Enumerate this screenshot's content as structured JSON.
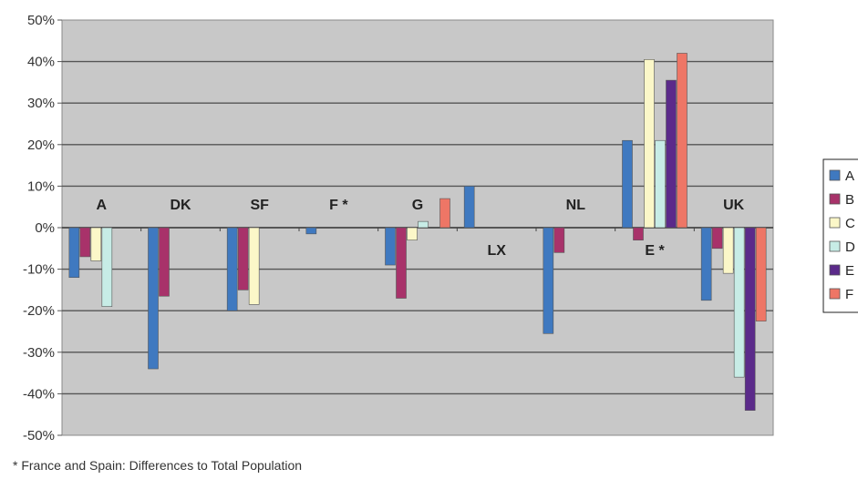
{
  "chart_data": {
    "type": "bar",
    "title": "",
    "xlabel": "",
    "ylabel": "",
    "ylim": [
      -50,
      50
    ],
    "y_ticks": [
      "-50%",
      "-40%",
      "-30%",
      "-20%",
      "-10%",
      "0%",
      "10%",
      "20%",
      "30%",
      "40%",
      "50%"
    ],
    "grid": true,
    "legend_position": "right",
    "background": "#c8c8c8",
    "categories": [
      "A",
      "DK",
      "SF",
      "F *",
      "G",
      "LX",
      "NL",
      "E *",
      "UK"
    ],
    "category_label_side": [
      "above",
      "above",
      "above",
      "above",
      "above",
      "below",
      "above",
      "below",
      "above"
    ],
    "series": [
      {
        "name": "A",
        "color": "#3f79c0",
        "values": [
          -12,
          -34,
          -20,
          -1.5,
          -9,
          10,
          -25.5,
          21,
          -17.5
        ]
      },
      {
        "name": "B",
        "color": "#a8326a",
        "values": [
          -7,
          -16.5,
          -15,
          null,
          -17,
          null,
          -6,
          -3,
          -5
        ]
      },
      {
        "name": "C",
        "color": "#fbf7c8",
        "values": [
          -8,
          null,
          -18.5,
          null,
          -3,
          null,
          null,
          40.5,
          -11
        ]
      },
      {
        "name": "D",
        "color": "#c7ece6",
        "values": [
          -19,
          null,
          null,
          null,
          1.5,
          null,
          null,
          21,
          -36
        ]
      },
      {
        "name": "E",
        "color": "#5b2a8a",
        "values": [
          null,
          null,
          null,
          null,
          null,
          null,
          null,
          35.5,
          -44
        ]
      },
      {
        "name": "F",
        "color": "#ee7666",
        "values": [
          null,
          null,
          null,
          null,
          7,
          null,
          null,
          42,
          -22.5
        ]
      }
    ]
  },
  "footnote": "* France and Spain: Differences to Total Population"
}
